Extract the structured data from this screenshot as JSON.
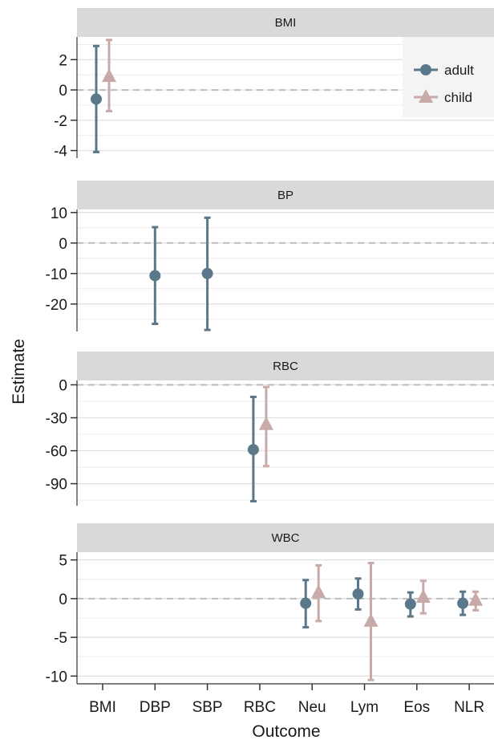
{
  "chart_data": {
    "type": "scatter",
    "subtype": "point-range facets",
    "xlabel": "Outcome",
    "ylabel": "Estimate",
    "categories": [
      "BMI",
      "DBP",
      "SBP",
      "RBC",
      "Neu",
      "Lym",
      "Eos",
      "NLR"
    ],
    "legend": {
      "position": "top-right",
      "entries": [
        {
          "name": "adult",
          "shape": "circle",
          "color": "#5a7889"
        },
        {
          "name": "child",
          "shape": "triangle",
          "color": "#c9aaaa"
        }
      ]
    },
    "reference_line": 0,
    "grid": true,
    "panels": [
      {
        "title": "BMI",
        "ylim": [
          -4.5,
          3.5
        ],
        "yticks": [
          -4,
          -2,
          0,
          2
        ],
        "points": [
          {
            "x": "BMI",
            "series": "adult",
            "estimate": -0.6,
            "low": -4.1,
            "high": 2.9
          },
          {
            "x": "BMI",
            "series": "child",
            "estimate": 0.9,
            "low": -1.4,
            "high": 3.3
          }
        ]
      },
      {
        "title": "BP",
        "ylim": [
          -29,
          11
        ],
        "yticks": [
          -20,
          -10,
          0,
          10
        ],
        "points": [
          {
            "x": "DBP",
            "series": "adult",
            "estimate": -10.7,
            "low": -26.5,
            "high": 5.2
          },
          {
            "x": "SBP",
            "series": "adult",
            "estimate": -10.0,
            "low": -28.5,
            "high": 8.3
          }
        ]
      },
      {
        "title": "RBC",
        "ylim": [
          -110,
          4
        ],
        "yticks": [
          -90,
          -60,
          -30,
          0
        ],
        "points": [
          {
            "x": "RBC",
            "series": "adult",
            "estimate": -59,
            "low": -106,
            "high": -11
          },
          {
            "x": "RBC",
            "series": "child",
            "estimate": -36,
            "low": -74,
            "high": -2
          }
        ]
      },
      {
        "title": "WBC",
        "ylim": [
          -11,
          6
        ],
        "yticks": [
          -10,
          -5,
          0,
          5
        ],
        "points": [
          {
            "x": "Neu",
            "series": "adult",
            "estimate": -0.6,
            "low": -3.7,
            "high": 2.4
          },
          {
            "x": "Neu",
            "series": "child",
            "estimate": 0.8,
            "low": -2.9,
            "high": 4.3
          },
          {
            "x": "Lym",
            "series": "adult",
            "estimate": 0.6,
            "low": -1.4,
            "high": 2.6
          },
          {
            "x": "Lym",
            "series": "child",
            "estimate": -2.9,
            "low": -10.5,
            "high": 4.6
          },
          {
            "x": "Eos",
            "series": "adult",
            "estimate": -0.7,
            "low": -2.3,
            "high": 0.8
          },
          {
            "x": "Eos",
            "series": "child",
            "estimate": 0.2,
            "low": -1.9,
            "high": 2.3
          },
          {
            "x": "NLR",
            "series": "adult",
            "estimate": -0.6,
            "low": -2.1,
            "high": 0.9
          },
          {
            "x": "NLR",
            "series": "child",
            "estimate": -0.2,
            "low": -1.5,
            "high": 0.9
          }
        ]
      }
    ]
  }
}
